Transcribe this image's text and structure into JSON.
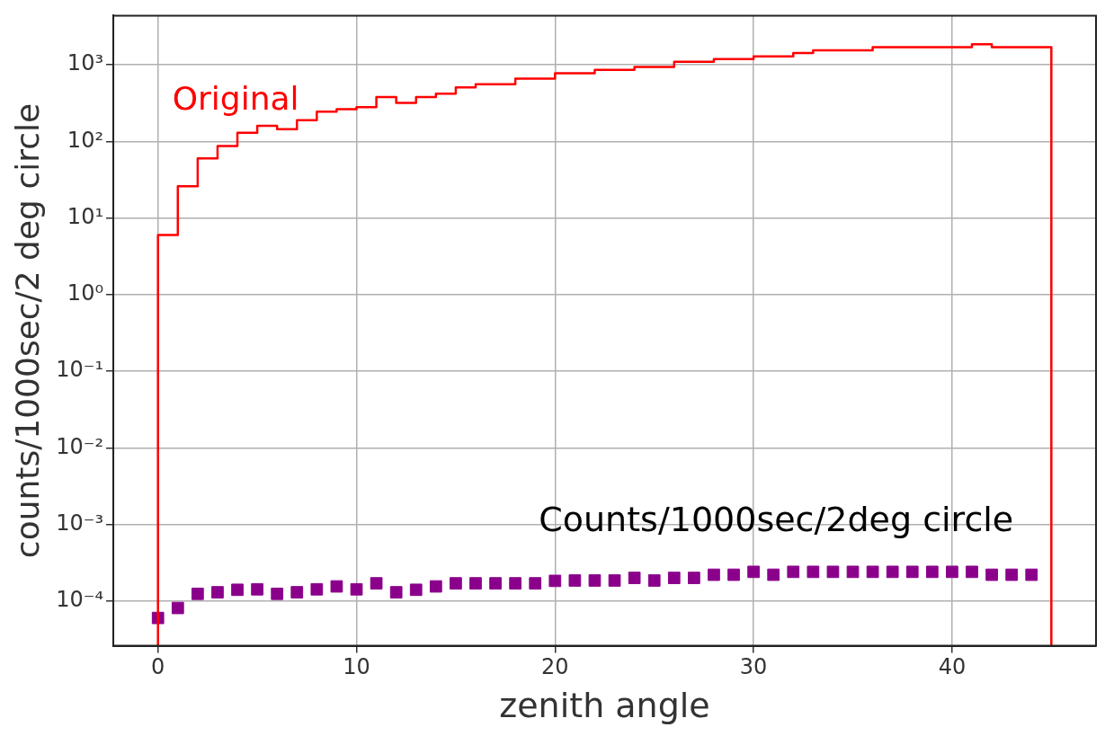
{
  "chart_data": {
    "type": "histogram",
    "xlabel": "zenith angle",
    "ylabel": "counts/1000sec/2 deg circle",
    "log": "y",
    "grid": true,
    "legend": false,
    "xlim": [
      -2.25,
      47.25
    ],
    "xticks": [
      0,
      10,
      20,
      30,
      40
    ],
    "ylim": [
      2.6e-05,
      4400.0
    ],
    "yticks": [
      {
        "value": 0.0001,
        "label": "10⁻⁴"
      },
      {
        "value": 0.001,
        "label": "10⁻³"
      },
      {
        "value": 0.01,
        "label": "10⁻²"
      },
      {
        "value": 0.1,
        "label": "10⁻¹"
      },
      {
        "value": 1,
        "label": "10⁰"
      },
      {
        "value": 10,
        "label": "10¹"
      },
      {
        "value": 100,
        "label": "10²"
      },
      {
        "value": 1000,
        "label": "10³"
      }
    ],
    "series": [
      {
        "type": "histogram",
        "name": "Original",
        "color": "#ff0000",
        "bins": [
          0,
          1,
          2,
          3,
          4,
          5,
          6,
          7,
          8,
          9,
          10,
          11,
          12,
          13,
          14,
          15,
          16,
          17,
          18,
          19,
          20,
          21,
          22,
          23,
          24,
          25,
          26,
          27,
          28,
          29,
          30,
          31,
          32,
          33,
          34,
          35,
          36,
          37,
          38,
          39,
          40,
          41,
          42,
          43,
          44,
          45
        ],
        "values": [
          6,
          26,
          60,
          87,
          130,
          160,
          145,
          190,
          245,
          265,
          280,
          380,
          320,
          380,
          420,
          510,
          560,
          560,
          660,
          660,
          780,
          780,
          860,
          860,
          940,
          940,
          1100,
          1100,
          1190,
          1190,
          1290,
          1290,
          1430,
          1550,
          1550,
          1550,
          1700,
          1700,
          1700,
          1700,
          1700,
          1860,
          1700,
          1700,
          1700
        ]
      },
      {
        "type": "scatter",
        "name": "Counts/1000sec/2deg circle",
        "color": "#8b008b",
        "marker": "square",
        "x": [
          0,
          1,
          2,
          3,
          4,
          5,
          6,
          7,
          8,
          9,
          10,
          11,
          12,
          13,
          14,
          15,
          16,
          17,
          18,
          19,
          20,
          21,
          22,
          23,
          24,
          25,
          26,
          27,
          28,
          29,
          30,
          31,
          32,
          33,
          34,
          35,
          36,
          37,
          38,
          39,
          40,
          41,
          42,
          43,
          44
        ],
        "values": [
          6e-05,
          8.1e-05,
          0.000124,
          0.00013,
          0.00014,
          0.000142,
          0.000124,
          0.00013,
          0.000142,
          0.000155,
          0.000142,
          0.00017,
          0.00013,
          0.00014,
          0.000155,
          0.00017,
          0.00017,
          0.00017,
          0.00017,
          0.00017,
          0.000183,
          0.000185,
          0.000185,
          0.000185,
          0.0002,
          0.000185,
          0.0002,
          0.0002,
          0.00022,
          0.00022,
          0.00024,
          0.00022,
          0.00024,
          0.00024,
          0.00024,
          0.00024,
          0.00024,
          0.00024,
          0.00024,
          0.00024,
          0.00024,
          0.00024,
          0.00022,
          0.00022,
          0.00022
        ]
      }
    ]
  }
}
